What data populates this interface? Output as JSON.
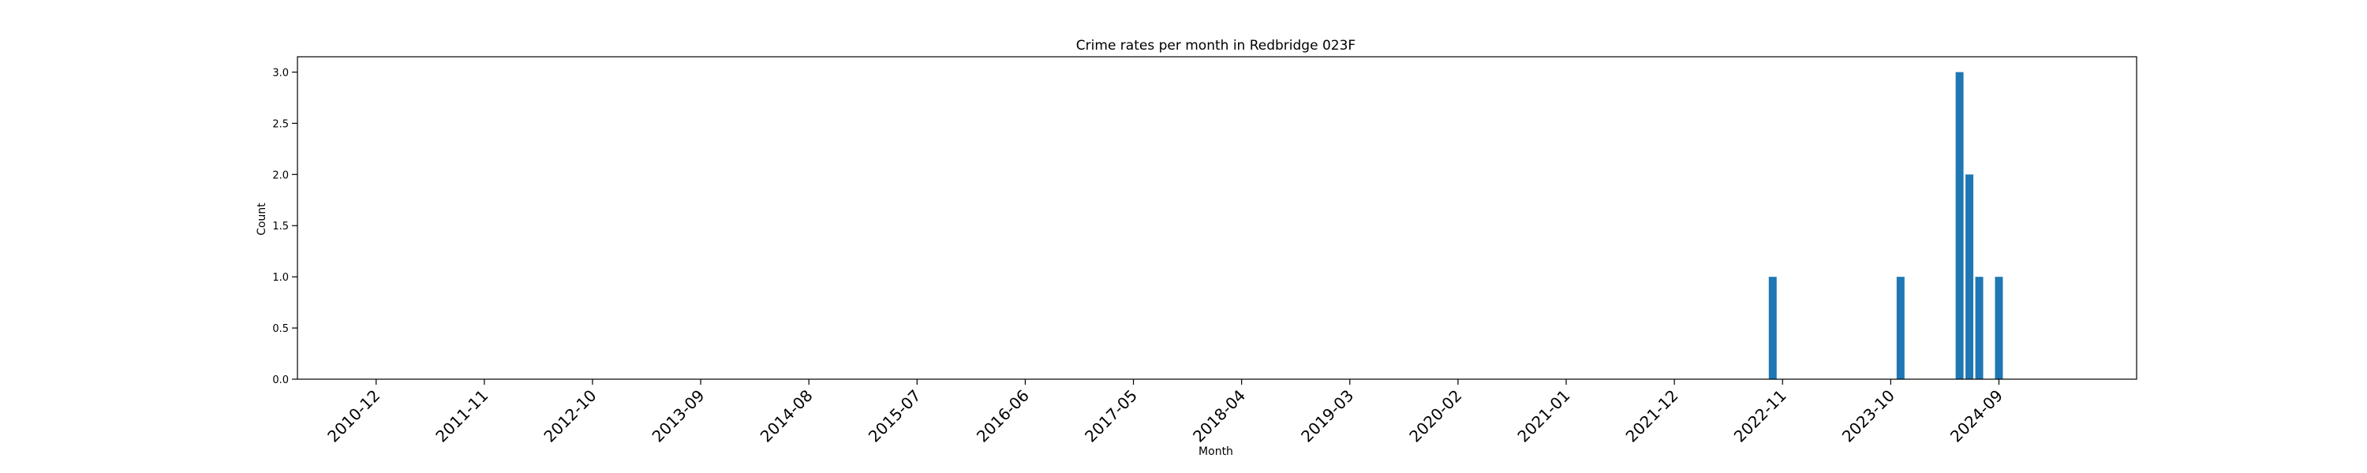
{
  "chart_data": {
    "type": "bar",
    "title": "Crime rates per month in Redbridge 023F",
    "xlabel": "Month",
    "ylabel": "Count",
    "ylim": [
      0,
      3.15
    ],
    "yticks": [
      0.0,
      0.5,
      1.0,
      1.5,
      2.0,
      2.5,
      3.0
    ],
    "ytick_labels": [
      "0.0",
      "0.5",
      "1.0",
      "1.5",
      "2.0",
      "2.5",
      "3.0"
    ],
    "xlim": [
      "2010-04",
      "2025-11"
    ],
    "xtick_labels": [
      "2010-12",
      "2011-11",
      "2012-10",
      "2013-09",
      "2014-08",
      "2015-07",
      "2016-06",
      "2017-05",
      "2018-04",
      "2019-03",
      "2020-02",
      "2021-01",
      "2021-12",
      "2022-11",
      "2023-10",
      "2024-09"
    ],
    "grid": false,
    "bar_color": "#1f77b4",
    "x": [
      "2022-10",
      "2023-11",
      "2024-05",
      "2024-06",
      "2024-07",
      "2024-09"
    ],
    "values": [
      1,
      1,
      3,
      2,
      1,
      1
    ]
  }
}
